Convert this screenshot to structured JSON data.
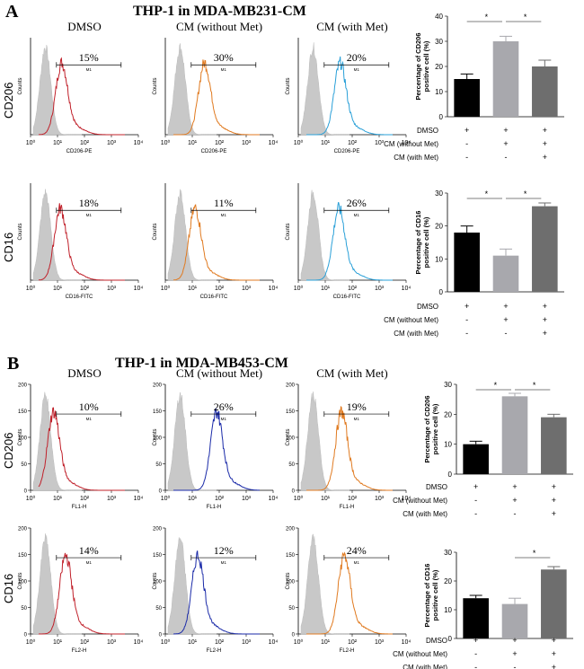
{
  "panels": [
    {
      "letter": "A",
      "title": "THP-1 in MDA-MB231-CM",
      "rows": [
        {
          "label": "CD206",
          "hist": [
            {
              "title": "DMSO",
              "pct": "15%",
              "xlabel": "CD206-PE",
              "ylabel": "Counts",
              "peak": 1.15,
              "color": "#c0202a"
            },
            {
              "title": "CM (without Met)",
              "pct": "30%",
              "xlabel": "CD206-PE",
              "ylabel": "Counts",
              "peak": 1.45,
              "color": "#e07a20"
            },
            {
              "title": "CM (with Met)",
              "pct": "20%",
              "xlabel": "CD206-PE",
              "ylabel": "Counts",
              "peak": 1.55,
              "color": "#2aa0d8"
            }
          ],
          "bar": {
            "ylabel": "Percentage of CD206 positive cell (%)",
            "ylim": [
              0,
              40
            ],
            "yticks": [
              0,
              10,
              20,
              30,
              40
            ],
            "values": [
              15,
              30,
              20
            ],
            "errors": [
              2,
              2,
              2.5
            ],
            "sig": [
              [
                0,
                1
              ],
              [
                1,
                2
              ]
            ]
          }
        },
        {
          "label": "CD16",
          "hist": [
            {
              "title": "",
              "pct": "18%",
              "xlabel": "CD16-FITC",
              "ylabel": "Counts",
              "peak": 1.1,
              "color": "#c0202a"
            },
            {
              "title": "",
              "pct": "11%",
              "xlabel": "CD16-FITC",
              "ylabel": "Counts",
              "peak": 1.1,
              "color": "#e07a20"
            },
            {
              "title": "",
              "pct": "26%",
              "xlabel": "CD16-FITC",
              "ylabel": "Counts",
              "peak": 1.5,
              "color": "#2aa0d8"
            }
          ],
          "bar": {
            "ylabel": "Percentage of CD16 positive cell (%)",
            "ylim": [
              0,
              30
            ],
            "yticks": [
              0,
              10,
              20,
              30
            ],
            "values": [
              18,
              11,
              26
            ],
            "errors": [
              2,
              2,
              1
            ],
            "sig": [
              [
                0,
                1
              ],
              [
                1,
                2
              ]
            ]
          }
        }
      ]
    },
    {
      "letter": "B",
      "title": "THP-1 in MDA-MB453-CM",
      "rows": [
        {
          "label": "CD206",
          "hist": [
            {
              "title": "DMSO",
              "pct": "10%",
              "xlabel": "FL1-H",
              "ylabel": "Counts",
              "peak": 0.85,
              "color": "#c0202a"
            },
            {
              "title": "CM (without Met)",
              "pct": "26%",
              "xlabel": "FL1-H",
              "ylabel": "Counts",
              "peak": 1.9,
              "color": "#1a2aa8"
            },
            {
              "title": "CM (with Met)",
              "pct": "19%",
              "xlabel": "FL1-H",
              "ylabel": "Counts",
              "peak": 1.6,
              "color": "#e07a20"
            }
          ],
          "bar": {
            "ylabel": "Percentage of CD206 positive cell (%)",
            "ylim": [
              0,
              30
            ],
            "yticks": [
              0,
              10,
              20,
              30
            ],
            "values": [
              10,
              26,
              19
            ],
            "errors": [
              1,
              1,
              1
            ],
            "sig": [
              [
                0,
                1
              ],
              [
                1,
                2
              ]
            ]
          }
        },
        {
          "label": "CD16",
          "hist": [
            {
              "title": "",
              "pct": "14%",
              "xlabel": "FL2-H",
              "ylabel": "Counts",
              "peak": 1.3,
              "color": "#c0202a"
            },
            {
              "title": "",
              "pct": "12%",
              "xlabel": "FL2-H",
              "ylabel": "Counts",
              "peak": 1.2,
              "color": "#1a2aa8"
            },
            {
              "title": "",
              "pct": "24%",
              "xlabel": "FL2-H",
              "ylabel": "Counts",
              "peak": 1.7,
              "color": "#e07a20"
            }
          ],
          "bar": {
            "ylabel": "Percentage of CD16 positive cell (%)",
            "ylim": [
              0,
              30
            ],
            "yticks": [
              0,
              10,
              20,
              30
            ],
            "values": [
              14,
              12,
              24
            ],
            "errors": [
              1,
              2,
              1
            ],
            "sig": [
              [
                1,
                2
              ]
            ]
          }
        }
      ]
    }
  ],
  "hist_axis": {
    "gate": "M1",
    "xticks": [
      "10⁰",
      "10¹",
      "10²",
      "10³",
      "10⁴"
    ],
    "A_yticks": [],
    "B_yticks": [
      "0",
      "50",
      "100",
      "150",
      "200"
    ]
  },
  "treatment_table": {
    "rows": [
      "DMSO",
      "CM (without Met)",
      "CM (with Met)"
    ],
    "signs": [
      [
        "+",
        "+",
        "+"
      ],
      [
        "-",
        "+",
        "+"
      ],
      [
        "-",
        "-",
        "+"
      ]
    ]
  },
  "bar_colors": [
    "#000000",
    "#a8a8ad",
    "#6e6e6e"
  ],
  "colors": {
    "isotype": "#c8c8c8"
  },
  "chart_data": [
    {
      "type": "bar",
      "ylabel": "Percentage of CD206 positive cell (%)",
      "categories": [
        "DMSO",
        "CM (without Met)",
        "CM (with Met)"
      ],
      "values": [
        15,
        30,
        20
      ],
      "ylim": [
        0,
        40
      ]
    },
    {
      "type": "bar",
      "ylabel": "Percentage of CD16 positive cell (%)",
      "categories": [
        "DMSO",
        "CM (without Met)",
        "CM (with Met)"
      ],
      "values": [
        18,
        11,
        26
      ],
      "ylim": [
        0,
        30
      ]
    },
    {
      "type": "bar",
      "ylabel": "Percentage of CD206 positive cell (%)",
      "categories": [
        "DMSO",
        "CM (without Met)",
        "CM (with Met)"
      ],
      "values": [
        10,
        26,
        19
      ],
      "ylim": [
        0,
        30
      ]
    },
    {
      "type": "bar",
      "ylabel": "Percentage of CD16 positive cell (%)",
      "categories": [
        "DMSO",
        "CM (without Met)",
        "CM (with Met)"
      ],
      "values": [
        14,
        12,
        24
      ],
      "ylim": [
        0,
        30
      ]
    }
  ]
}
